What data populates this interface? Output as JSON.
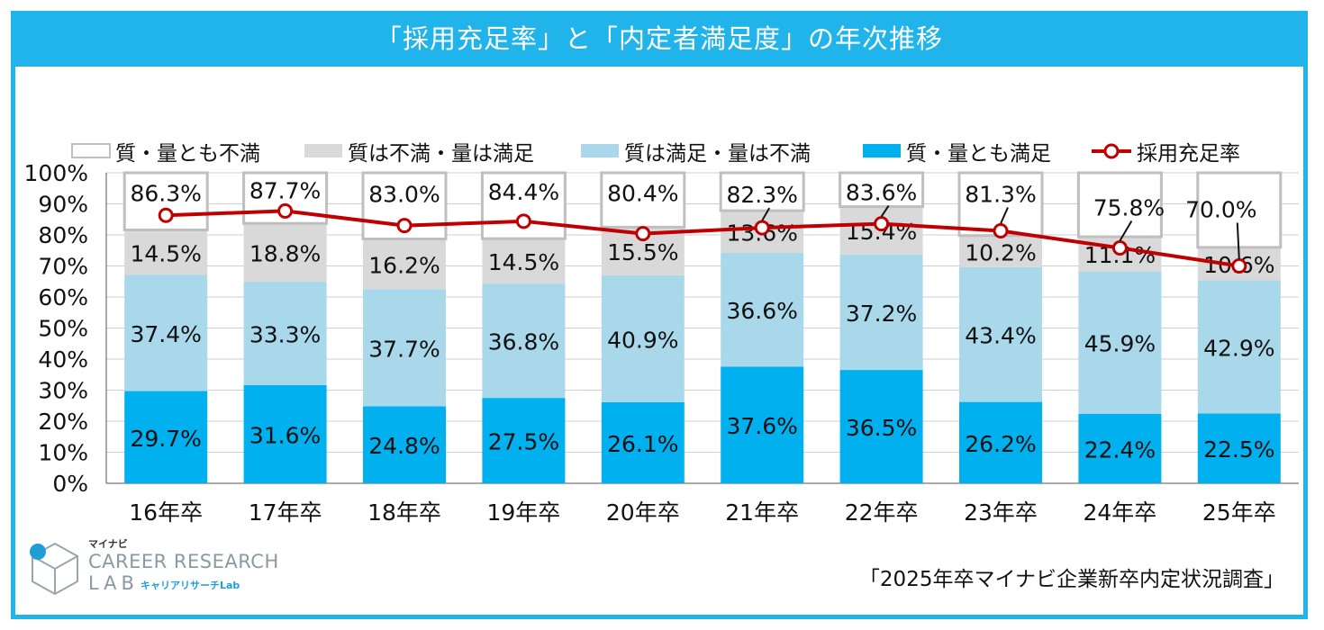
{
  "title": "「採用充足率」と「内定者満足度」の年次推移",
  "source": "「2025年卒マイナビ企業新卒内定状況調査」",
  "logo": {
    "top": "マイナビ",
    "line1": "CAREER RESEARCH",
    "line2": "LAB",
    "sub": "キャリアリサーチLab"
  },
  "colors": {
    "both_satisfied": "#00b0ef",
    "quality_sat_quantity_unsat": "#a9d8ea",
    "quality_unsat_quantity_sat": "#d9d9d9",
    "both_unsatisfied": "#ffffff",
    "line": "#c00000",
    "accent": "#20b4ea"
  },
  "chart_data": {
    "type": "bar",
    "stacked": true,
    "categories": [
      "16年卒",
      "17年卒",
      "18年卒",
      "19年卒",
      "20年卒",
      "21年卒",
      "22年卒",
      "23年卒",
      "24年卒",
      "25年卒"
    ],
    "ylim": [
      0,
      100
    ],
    "yticks": [
      "0%",
      "10%",
      "20%",
      "30%",
      "40%",
      "50%",
      "60%",
      "70%",
      "80%",
      "90%",
      "100%"
    ],
    "grid": true,
    "legend_position": "top",
    "series": [
      {
        "name": "質・量とも満足",
        "values": [
          29.7,
          31.6,
          24.8,
          27.5,
          26.1,
          37.6,
          36.5,
          26.2,
          22.4,
          22.5
        ],
        "labels": [
          "29.7%",
          "31.6%",
          "24.8%",
          "27.5%",
          "26.1%",
          "37.6%",
          "36.5%",
          "26.2%",
          "22.4%",
          "22.5%"
        ]
      },
      {
        "name": "質は満足・量は不満",
        "values": [
          37.4,
          33.3,
          37.7,
          36.8,
          40.9,
          36.6,
          37.2,
          43.4,
          45.9,
          42.9
        ],
        "labels": [
          "37.4%",
          "33.3%",
          "37.7%",
          "36.8%",
          "40.9%",
          "36.6%",
          "37.2%",
          "43.4%",
          "45.9%",
          "42.9%"
        ]
      },
      {
        "name": "質は不満・量は満足",
        "values": [
          14.5,
          18.8,
          16.2,
          14.5,
          15.5,
          13.6,
          15.4,
          10.2,
          11.1,
          10.6
        ],
        "labels": [
          "14.5%",
          "18.8%",
          "16.2%",
          "14.5%",
          "15.5%",
          "13.6%",
          "15.4%",
          "10.2%",
          "11.1%",
          "10.6%"
        ]
      },
      {
        "name": "質・量とも不満",
        "values": [
          18.4,
          16.3,
          21.3,
          21.2,
          17.5,
          12.2,
          10.9,
          20.2,
          20.6,
          24.0
        ]
      }
    ],
    "line_series": {
      "name": "採用充足率",
      "values": [
        86.3,
        87.7,
        83.0,
        84.4,
        80.4,
        82.3,
        83.6,
        81.3,
        75.8,
        70.0
      ],
      "labels": [
        "86.3%",
        "87.7%",
        "83.0%",
        "84.4%",
        "80.4%",
        "82.3%",
        "83.6%",
        "81.3%",
        "75.8%",
        "70.0%"
      ]
    }
  }
}
